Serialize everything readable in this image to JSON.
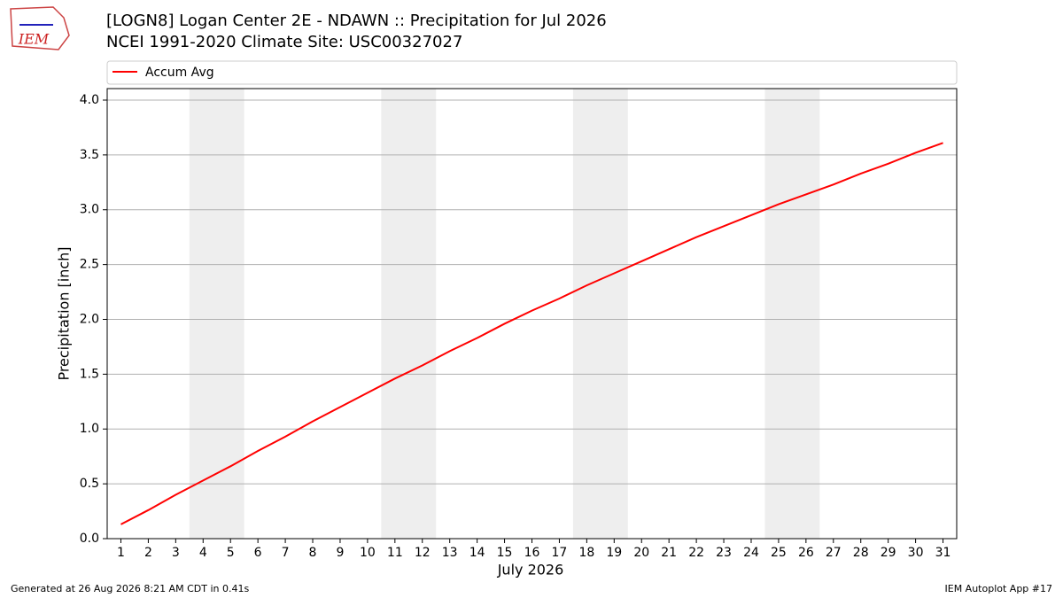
{
  "chart_data": {
    "type": "line",
    "title": "[LOGN8] Logan Center 2E - NDAWN :: Precipitation for Jul 2026",
    "subtitle": "NCEI 1991-2020 Climate Site: USC00327027",
    "x_label": "July 2026",
    "y_label": "Precipitation [inch]",
    "x": [
      1,
      2,
      3,
      4,
      5,
      6,
      7,
      8,
      9,
      10,
      11,
      12,
      13,
      14,
      15,
      16,
      17,
      18,
      19,
      20,
      21,
      22,
      23,
      24,
      25,
      26,
      27,
      28,
      29,
      30,
      31
    ],
    "series": [
      {
        "name": "Accum Avg",
        "color": "#ff0000",
        "values": [
          0.13,
          0.26,
          0.4,
          0.53,
          0.66,
          0.8,
          0.93,
          1.07,
          1.2,
          1.33,
          1.46,
          1.58,
          1.71,
          1.83,
          1.96,
          2.08,
          2.19,
          2.31,
          2.42,
          2.53,
          2.64,
          2.75,
          2.85,
          2.95,
          3.05,
          3.14,
          3.23,
          3.33,
          3.42,
          3.52,
          3.61
        ]
      }
    ],
    "xlim": [
      0.5,
      31.5
    ],
    "xticks": [
      1,
      2,
      3,
      4,
      5,
      6,
      7,
      8,
      9,
      10,
      11,
      12,
      13,
      14,
      15,
      16,
      17,
      18,
      19,
      20,
      21,
      22,
      23,
      24,
      25,
      26,
      27,
      28,
      29,
      30,
      31
    ],
    "ylim": [
      0,
      4.105
    ],
    "yticks": [
      {
        "value": 0,
        "label": "0.0"
      },
      {
        "value": 0.5,
        "label": "0.5"
      },
      {
        "value": 1,
        "label": "1.0"
      },
      {
        "value": 1.5,
        "label": "1.5"
      },
      {
        "value": 2,
        "label": "2.0"
      },
      {
        "value": 2.5,
        "label": "2.5"
      },
      {
        "value": 3,
        "label": "3.0"
      },
      {
        "value": 3.5,
        "label": "3.5"
      },
      {
        "value": 4,
        "label": "4.0"
      }
    ],
    "grid": true,
    "shaded_spans": [
      [
        3.5,
        5.5
      ],
      [
        10.5,
        12.5
      ],
      [
        17.5,
        19.5
      ],
      [
        24.5,
        26.5
      ]
    ],
    "shade_color": "#eeeeee",
    "legend": "top"
  },
  "logo": {
    "text": "IEM"
  },
  "footer": {
    "left": "Generated at 26 Aug 2026 8:21 AM CDT in 0.41s",
    "right": "IEM Autoplot App #17"
  }
}
